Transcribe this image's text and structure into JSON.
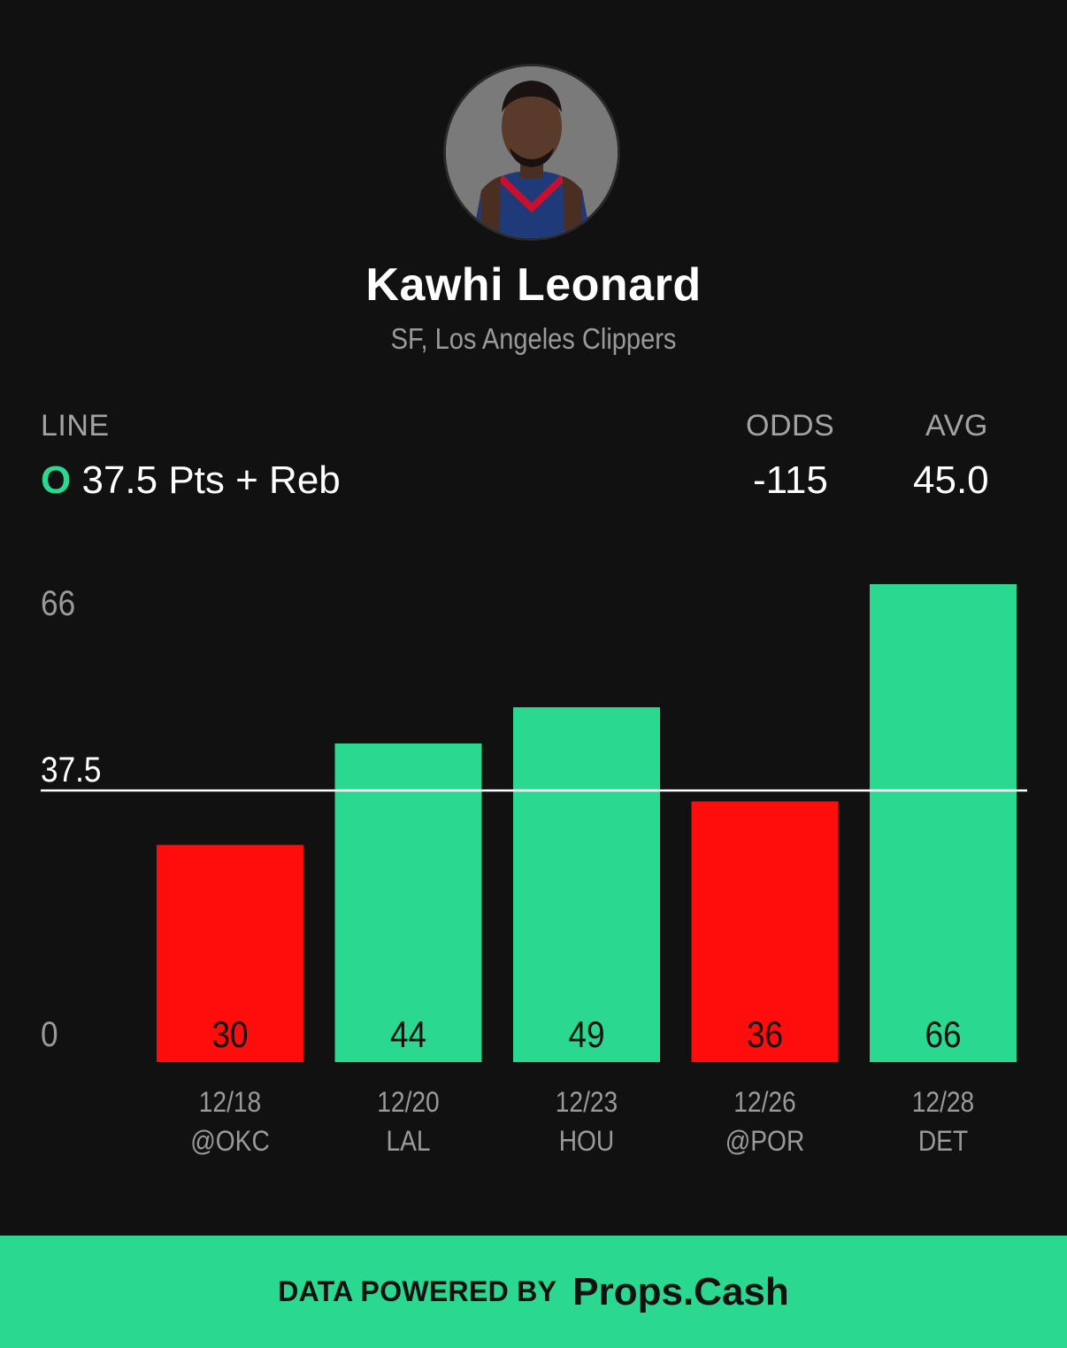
{
  "player": {
    "name": "Kawhi Leonard",
    "subtitle": "SF, Los Angeles Clippers",
    "photo_icon": "player-headshot-icon"
  },
  "line": {
    "header": "LINE",
    "ou_marker": "O",
    "label": "37.5 Pts + Reb"
  },
  "odds": {
    "header": "ODDS",
    "value": "-115"
  },
  "avg": {
    "header": "AVG",
    "value": "45.0"
  },
  "colors": {
    "over": "#2ad98f",
    "under": "#ff0d0d",
    "background": "#111111"
  },
  "chart_data": {
    "type": "bar",
    "categories": [
      "12/18 @OKC",
      "12/20 LAL",
      "12/23 HOU",
      "12/26 @POR",
      "12/28 DET"
    ],
    "dates": [
      "12/18",
      "12/20",
      "12/23",
      "12/26",
      "12/28"
    ],
    "opponents": [
      "@OKC",
      "LAL",
      "HOU",
      "@POR",
      "DET"
    ],
    "values": [
      30,
      44,
      49,
      36,
      66
    ],
    "value_labels": [
      "30",
      "44",
      "49",
      "36",
      "66"
    ],
    "line": 37.5,
    "ylim": [
      0,
      66
    ],
    "yticks": [
      "66",
      "37.5",
      "0"
    ],
    "grid": false
  },
  "footer": {
    "pre": "DATA POWERED BY",
    "brand": "Props.Cash"
  }
}
